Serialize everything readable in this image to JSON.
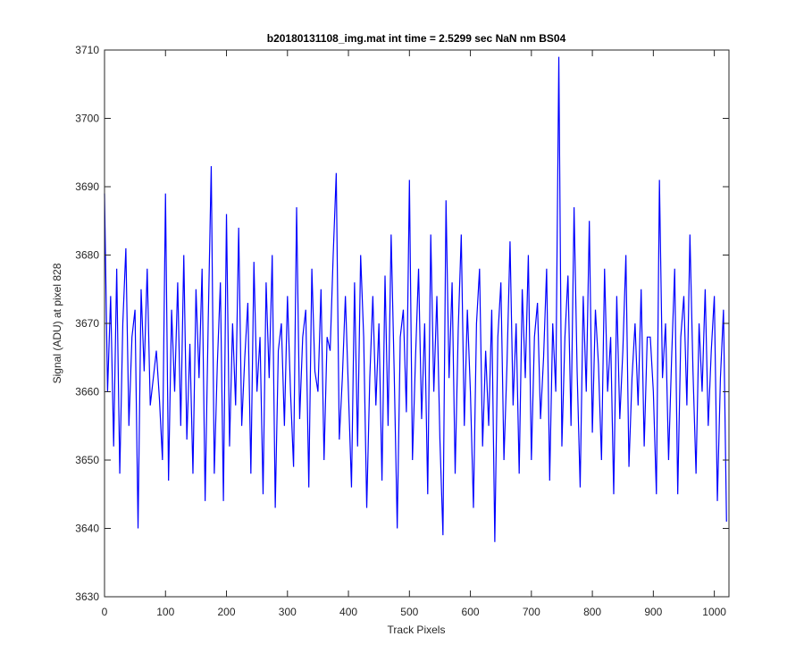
{
  "chart_data": {
    "type": "line",
    "title": "b20180131108_img.mat int time = 2.5299 sec  NaN nm BS04",
    "xlabel": "Track Pixels",
    "ylabel": "Signal (ADU) at pixel 828",
    "x": [
      0,
      5,
      10,
      15,
      20,
      25,
      30,
      35,
      40,
      45,
      50,
      55,
      60,
      65,
      70,
      75,
      80,
      85,
      90,
      95,
      100,
      105,
      110,
      115,
      120,
      125,
      130,
      135,
      140,
      145,
      150,
      155,
      160,
      165,
      170,
      175,
      180,
      185,
      190,
      195,
      200,
      205,
      210,
      215,
      220,
      225,
      230,
      235,
      240,
      245,
      250,
      255,
      260,
      265,
      270,
      275,
      280,
      285,
      290,
      295,
      300,
      305,
      310,
      315,
      320,
      325,
      330,
      335,
      340,
      345,
      350,
      355,
      360,
      365,
      370,
      375,
      380,
      385,
      390,
      395,
      400,
      405,
      410,
      415,
      420,
      425,
      430,
      435,
      440,
      445,
      450,
      455,
      460,
      465,
      470,
      475,
      480,
      485,
      490,
      495,
      500,
      505,
      510,
      515,
      520,
      525,
      530,
      535,
      540,
      545,
      550,
      555,
      560,
      565,
      570,
      575,
      580,
      585,
      590,
      595,
      600,
      605,
      610,
      615,
      620,
      625,
      630,
      635,
      640,
      645,
      650,
      655,
      660,
      665,
      670,
      675,
      680,
      685,
      690,
      695,
      700,
      705,
      710,
      715,
      720,
      725,
      730,
      735,
      740,
      745,
      750,
      755,
      760,
      765,
      770,
      775,
      780,
      785,
      790,
      795,
      800,
      805,
      810,
      815,
      820,
      825,
      830,
      835,
      840,
      845,
      850,
      855,
      860,
      865,
      870,
      875,
      880,
      885,
      890,
      895,
      900,
      905,
      910,
      915,
      920,
      925,
      930,
      935,
      940,
      945,
      950,
      955,
      960,
      965,
      970,
      975,
      980,
      985,
      990,
      995,
      1000,
      1005,
      1010,
      1015,
      1020
    ],
    "series": [
      {
        "color": "#0000ff",
        "values": [
          3689,
          3660,
          3674,
          3652,
          3678,
          3648,
          3670,
          3681,
          3655,
          3668,
          3672,
          3640,
          3675,
          3663,
          3678,
          3658,
          3662,
          3666,
          3659,
          3650,
          3689,
          3647,
          3672,
          3660,
          3676,
          3655,
          3680,
          3653,
          3667,
          3648,
          3675,
          3662,
          3678,
          3644,
          3670,
          3693,
          3648,
          3664,
          3676,
          3644,
          3686,
          3652,
          3670,
          3658,
          3684,
          3655,
          3665,
          3673,
          3648,
          3679,
          3660,
          3668,
          3645,
          3676,
          3662,
          3680,
          3643,
          3666,
          3670,
          3655,
          3674,
          3660,
          3649,
          3687,
          3656,
          3668,
          3672,
          3646,
          3678,
          3663,
          3660,
          3675,
          3650,
          3668,
          3666,
          3680,
          3692,
          3653,
          3662,
          3674,
          3660,
          3646,
          3676,
          3652,
          3680,
          3668,
          3643,
          3662,
          3674,
          3658,
          3670,
          3647,
          3677,
          3655,
          3683,
          3663,
          3640,
          3668,
          3672,
          3657,
          3691,
          3650,
          3665,
          3678,
          3656,
          3670,
          3645,
          3683,
          3660,
          3674,
          3653,
          3639,
          3688,
          3662,
          3676,
          3648,
          3669,
          3683,
          3655,
          3672,
          3660,
          3643,
          3670,
          3678,
          3652,
          3666,
          3655,
          3672,
          3638,
          3668,
          3676,
          3650,
          3664,
          3682,
          3658,
          3670,
          3648,
          3675,
          3662,
          3680,
          3650,
          3668,
          3673,
          3656,
          3665,
          3678,
          3647,
          3670,
          3660,
          3709,
          3652,
          3668,
          3677,
          3655,
          3687,
          3663,
          3646,
          3674,
          3660,
          3685,
          3654,
          3672,
          3664,
          3650,
          3678,
          3660,
          3668,
          3645,
          3674,
          3656,
          3666,
          3680,
          3649,
          3662,
          3670,
          3658,
          3675,
          3652,
          3668,
          3668,
          3660,
          3645,
          3691,
          3662,
          3670,
          3650,
          3665,
          3678,
          3645,
          3668,
          3674,
          3658,
          3683,
          3663,
          3648,
          3670,
          3660,
          3675,
          3655,
          3666,
          3674,
          3644,
          3662,
          3672,
          3641
        ]
      }
    ],
    "xlim": [
      0,
      1024
    ],
    "ylim": [
      3630,
      3710
    ],
    "xticks": [
      0,
      100,
      200,
      300,
      400,
      500,
      600,
      700,
      800,
      900,
      1000
    ],
    "yticks": [
      3630,
      3640,
      3650,
      3660,
      3670,
      3680,
      3690,
      3700,
      3710
    ]
  }
}
